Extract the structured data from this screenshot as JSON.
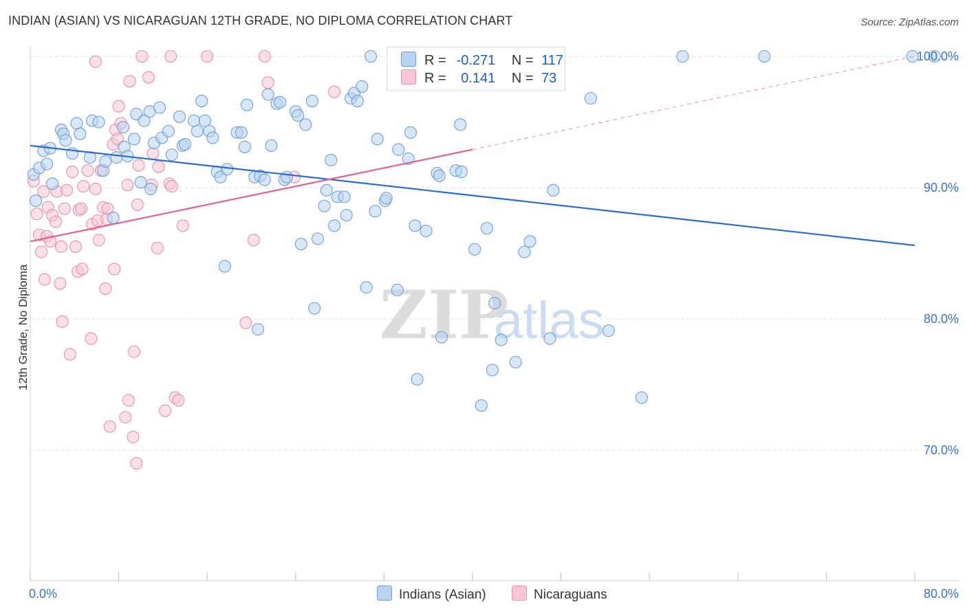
{
  "title": "INDIAN (ASIAN) VS NICARAGUAN 12TH GRADE, NO DIPLOMA CORRELATION CHART",
  "source": "Source: ZipAtlas.com",
  "watermark": {
    "zip": "ZIP",
    "atlas": "atlas"
  },
  "legend": {
    "r_label": "R =",
    "n_label": "N =",
    "rows": [
      {
        "r": "-0.271",
        "n": "117"
      },
      {
        "r": "0.141",
        "n": "73"
      }
    ]
  },
  "colors": {
    "blue_fill": "#b8d3f3",
    "blue_stroke": "#6e9fd8",
    "blue_line": "#2a6bd0",
    "pink_fill": "#f9c6d6",
    "pink_stroke": "#e890ac",
    "pink_line": "#e36090",
    "tick_label": "#3a73c7"
  },
  "chart_data": {
    "type": "scatter",
    "title": "INDIAN (ASIAN) VS NICARAGUAN 12TH GRADE, NO DIPLOMA CORRELATION CHART",
    "xlabel": "",
    "ylabel": "12th Grade, No Diploma",
    "xlim": [
      0,
      80
    ],
    "ylim": [
      60,
      103
    ],
    "x_tick_labels": [
      "0.0%",
      "80.0%"
    ],
    "y_ticks": [
      70,
      80,
      90,
      100
    ],
    "y_tick_labels": [
      "70.0%",
      "80.0%",
      "90.0%",
      "100.0%"
    ],
    "grid": true,
    "legend_position": "bottom",
    "series": [
      {
        "name": "Indians (Asian)",
        "r": -0.271,
        "n": 117,
        "trend": {
          "x": [
            0,
            80
          ],
          "y": [
            93.2,
            85.6
          ]
        },
        "points": [
          [
            0.3,
            91.0
          ],
          [
            0.5,
            89.0
          ],
          [
            0.8,
            91.5
          ],
          [
            1.2,
            92.8
          ],
          [
            1.5,
            91.8
          ],
          [
            1.8,
            93.0
          ],
          [
            2.0,
            90.3
          ],
          [
            2.8,
            94.4
          ],
          [
            3.0,
            94.1
          ],
          [
            3.2,
            93.6
          ],
          [
            3.8,
            92.6
          ],
          [
            4.2,
            94.9
          ],
          [
            4.5,
            94.1
          ],
          [
            5.4,
            92.3
          ],
          [
            5.6,
            95.1
          ],
          [
            6.2,
            95.0
          ],
          [
            6.6,
            91.3
          ],
          [
            6.8,
            92.0
          ],
          [
            7.5,
            87.7
          ],
          [
            7.8,
            92.3
          ],
          [
            8.4,
            94.6
          ],
          [
            8.5,
            93.1
          ],
          [
            8.8,
            92.4
          ],
          [
            9.4,
            93.7
          ],
          [
            9.6,
            95.6
          ],
          [
            10.0,
            90.4
          ],
          [
            10.3,
            95.1
          ],
          [
            10.8,
            95.8
          ],
          [
            10.9,
            89.9
          ],
          [
            11.2,
            93.4
          ],
          [
            11.7,
            96.1
          ],
          [
            11.9,
            93.8
          ],
          [
            12.5,
            94.3
          ],
          [
            12.8,
            92.5
          ],
          [
            13.5,
            95.4
          ],
          [
            13.8,
            93.2
          ],
          [
            14.0,
            93.3
          ],
          [
            14.8,
            95.1
          ],
          [
            15.1,
            94.3
          ],
          [
            15.5,
            96.6
          ],
          [
            15.8,
            95.1
          ],
          [
            16.2,
            94.3
          ],
          [
            16.5,
            93.8
          ],
          [
            16.9,
            91.2
          ],
          [
            17.2,
            90.8
          ],
          [
            17.8,
            91.4
          ],
          [
            17.6,
            84.0
          ],
          [
            18.7,
            94.2
          ],
          [
            19.1,
            94.2
          ],
          [
            19.4,
            93.1
          ],
          [
            19.6,
            96.3
          ],
          [
            20.3,
            90.8
          ],
          [
            20.6,
            79.2
          ],
          [
            20.8,
            90.9
          ],
          [
            21.2,
            90.6
          ],
          [
            21.5,
            97.1
          ],
          [
            21.8,
            93.2
          ],
          [
            22.3,
            96.4
          ],
          [
            22.6,
            96.5
          ],
          [
            23.0,
            90.6
          ],
          [
            23.2,
            90.8
          ],
          [
            24.0,
            95.8
          ],
          [
            24.2,
            95.5
          ],
          [
            24.5,
            85.7
          ],
          [
            24.9,
            94.8
          ],
          [
            25.5,
            96.6
          ],
          [
            25.7,
            80.8
          ],
          [
            26.0,
            86.1
          ],
          [
            26.6,
            88.6
          ],
          [
            26.8,
            89.8
          ],
          [
            27.2,
            92.1
          ],
          [
            27.5,
            87.1
          ],
          [
            27.8,
            89.3
          ],
          [
            28.4,
            89.3
          ],
          [
            28.6,
            87.9
          ],
          [
            29.0,
            96.8
          ],
          [
            29.3,
            97.2
          ],
          [
            29.6,
            96.6
          ],
          [
            30.0,
            97.7
          ],
          [
            30.4,
            82.4
          ],
          [
            30.8,
            100.0
          ],
          [
            31.2,
            88.2
          ],
          [
            31.4,
            93.7
          ],
          [
            32.1,
            89.0
          ],
          [
            32.2,
            89.2
          ],
          [
            33.2,
            82.2
          ],
          [
            33.3,
            92.9
          ],
          [
            34.2,
            92.2
          ],
          [
            34.4,
            94.2
          ],
          [
            34.8,
            87.1
          ],
          [
            35.0,
            75.4
          ],
          [
            35.8,
            86.7
          ],
          [
            36.8,
            91.1
          ],
          [
            37.0,
            90.9
          ],
          [
            37.2,
            78.6
          ],
          [
            38.5,
            91.3
          ],
          [
            38.9,
            94.8
          ],
          [
            39.0,
            91.2
          ],
          [
            40.2,
            85.3
          ],
          [
            40.8,
            73.4
          ],
          [
            41.3,
            86.9
          ],
          [
            41.8,
            76.1
          ],
          [
            42.0,
            81.2
          ],
          [
            42.6,
            78.4
          ],
          [
            43.9,
            76.7
          ],
          [
            44.5,
            100.0
          ],
          [
            44.7,
            85.1
          ],
          [
            45.2,
            85.9
          ],
          [
            47.0,
            78.5
          ],
          [
            47.3,
            89.8
          ],
          [
            50.7,
            96.8
          ],
          [
            52.3,
            79.1
          ],
          [
            55.3,
            74.0
          ],
          [
            59.0,
            100.0
          ],
          [
            66.4,
            100.0
          ],
          [
            79.8,
            100.0
          ],
          [
            81.8,
            100.0
          ]
        ]
      },
      {
        "name": "Nicaraguans",
        "r": 0.141,
        "n": 73,
        "trend": {
          "x": [
            0,
            40
          ],
          "y": [
            85.9,
            92.9
          ]
        },
        "trend_extended": {
          "x": [
            40,
            80
          ],
          "y": [
            92.9,
            100.0
          ]
        },
        "points": [
          [
            0.3,
            90.5
          ],
          [
            0.6,
            88.0
          ],
          [
            0.8,
            86.4
          ],
          [
            1.0,
            85.1
          ],
          [
            1.2,
            89.7
          ],
          [
            1.3,
            83.0
          ],
          [
            1.5,
            86.3
          ],
          [
            1.6,
            88.5
          ],
          [
            1.8,
            85.9
          ],
          [
            2.0,
            87.9
          ],
          [
            2.3,
            87.4
          ],
          [
            2.4,
            89.7
          ],
          [
            2.7,
            82.7
          ],
          [
            2.8,
            85.5
          ],
          [
            2.9,
            79.8
          ],
          [
            3.1,
            88.4
          ],
          [
            3.3,
            89.8
          ],
          [
            3.6,
            77.3
          ],
          [
            3.8,
            91.2
          ],
          [
            4.1,
            85.5
          ],
          [
            4.3,
            83.6
          ],
          [
            4.4,
            88.3
          ],
          [
            4.6,
            88.4
          ],
          [
            4.7,
            83.8
          ],
          [
            4.8,
            90.1
          ],
          [
            5.2,
            91.3
          ],
          [
            5.5,
            78.5
          ],
          [
            5.6,
            87.2
          ],
          [
            5.9,
            89.9
          ],
          [
            5.9,
            99.6
          ],
          [
            6.1,
            87.5
          ],
          [
            6.2,
            86.0
          ],
          [
            6.4,
            91.3
          ],
          [
            6.6,
            88.5
          ],
          [
            6.8,
            82.3
          ],
          [
            6.9,
            87.6
          ],
          [
            7.0,
            88.4
          ],
          [
            7.2,
            71.8
          ],
          [
            7.5,
            93.3
          ],
          [
            7.6,
            83.8
          ],
          [
            7.7,
            94.4
          ],
          [
            7.9,
            93.7
          ],
          [
            8.0,
            96.2
          ],
          [
            8.2,
            94.9
          ],
          [
            8.6,
            72.5
          ],
          [
            8.8,
            90.2
          ],
          [
            8.9,
            73.8
          ],
          [
            9.0,
            98.1
          ],
          [
            9.3,
            71.0
          ],
          [
            9.4,
            77.5
          ],
          [
            9.6,
            69.0
          ],
          [
            9.7,
            88.7
          ],
          [
            9.8,
            91.7
          ],
          [
            10.1,
            100.0
          ],
          [
            10.7,
            98.4
          ],
          [
            11.0,
            90.2
          ],
          [
            11.1,
            92.6
          ],
          [
            11.5,
            85.4
          ],
          [
            11.6,
            91.6
          ],
          [
            12.2,
            73.0
          ],
          [
            12.6,
            90.3
          ],
          [
            12.7,
            100.0
          ],
          [
            12.8,
            90.1
          ],
          [
            13.1,
            74.0
          ],
          [
            13.4,
            73.8
          ],
          [
            13.8,
            87.1
          ],
          [
            16.0,
            100.0
          ],
          [
            19.5,
            79.7
          ],
          [
            20.2,
            86.0
          ],
          [
            21.2,
            100.0
          ],
          [
            21.5,
            98.0
          ],
          [
            23.9,
            90.8
          ],
          [
            27.5,
            97.3
          ]
        ]
      }
    ]
  }
}
